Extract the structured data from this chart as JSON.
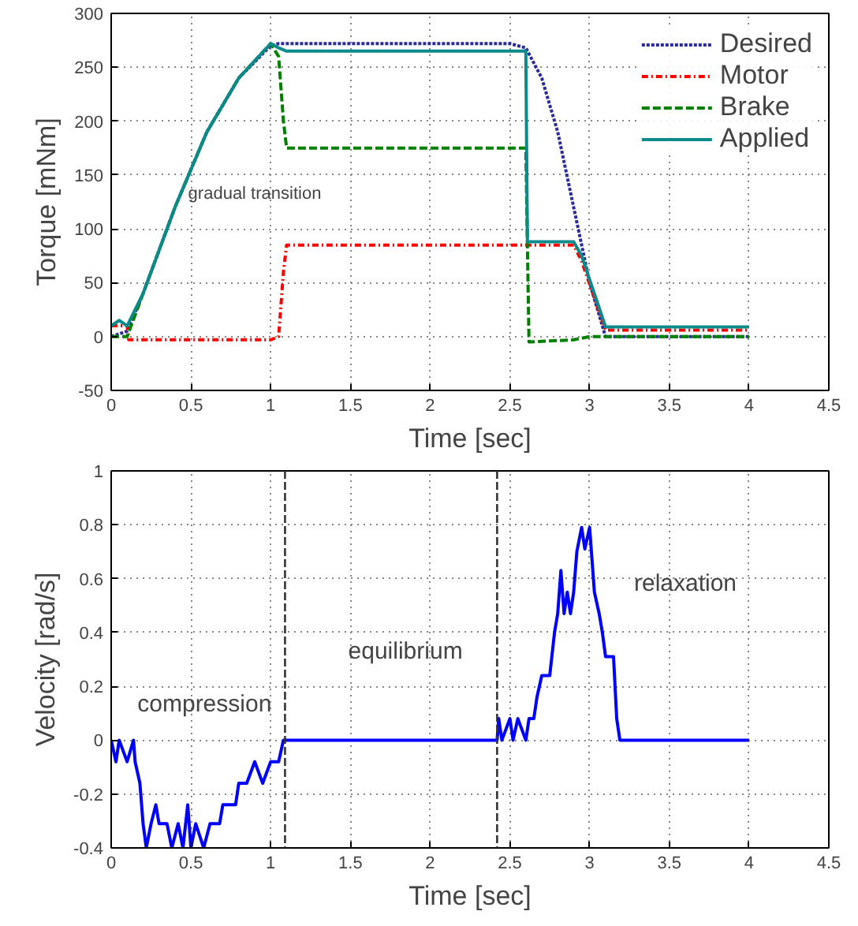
{
  "chart_data": [
    {
      "type": "line",
      "xlabel": "Time [sec]",
      "ylabel": "Torque [mNm]",
      "xlim": [
        0,
        4.5
      ],
      "ylim": [
        -50,
        300
      ],
      "xticks": [
        0,
        0.5,
        1,
        1.5,
        2,
        2.5,
        3,
        3.5,
        4,
        4.5
      ],
      "yticks": [
        -50,
        0,
        50,
        100,
        150,
        200,
        250,
        300
      ],
      "grid": true,
      "legend": "top right",
      "annotations": [
        "gradual transition"
      ],
      "series": [
        {
          "name": "Desired",
          "color": "#2b2b9c",
          "line_style": "dotted",
          "x": [
            0,
            0.1,
            0.2,
            0.4,
            0.6,
            0.8,
            1.0,
            1.05,
            2.5,
            2.6,
            2.7,
            2.8,
            2.9,
            3.0,
            3.1,
            4.0
          ],
          "values": [
            0,
            5,
            40,
            120,
            190,
            240,
            270,
            272,
            272,
            268,
            240,
            190,
            120,
            50,
            0,
            0
          ]
        },
        {
          "name": "Motor",
          "color": "#ff0000",
          "line_style": "dashdot",
          "x": [
            0,
            0.1,
            0.11,
            0.5,
            1.0,
            1.05,
            1.08,
            1.1,
            2.9,
            2.95,
            3.1,
            4.0
          ],
          "values": [
            10,
            10,
            -3,
            -3,
            -3,
            0,
            60,
            85,
            85,
            70,
            6,
            6
          ]
        },
        {
          "name": "Brake",
          "color": "#008000",
          "line_style": "dashed",
          "x": [
            0,
            0.1,
            0.2,
            0.4,
            0.6,
            0.8,
            1.0,
            1.05,
            1.08,
            1.1,
            2.6,
            2.62,
            2.9,
            3.0,
            4.0
          ],
          "values": [
            0,
            0,
            40,
            120,
            190,
            240,
            272,
            260,
            200,
            175,
            175,
            -5,
            -3,
            0,
            0
          ]
        },
        {
          "name": "Applied",
          "color": "#0b8a8a",
          "line_style": "solid",
          "x": [
            0,
            0.05,
            0.1,
            0.2,
            0.4,
            0.6,
            0.8,
            1.0,
            1.05,
            1.1,
            2.6,
            2.61,
            2.9,
            2.95,
            3.1,
            4.0
          ],
          "values": [
            10,
            15,
            10,
            40,
            120,
            190,
            240,
            272,
            268,
            265,
            265,
            88,
            88,
            75,
            9,
            9
          ]
        }
      ]
    },
    {
      "type": "line",
      "xlabel": "Time [sec]",
      "ylabel": "Velocity [rad/s]",
      "xlim": [
        0,
        4.5
      ],
      "ylim": [
        -0.4,
        1
      ],
      "xticks": [
        0,
        0.5,
        1,
        1.5,
        2,
        2.5,
        3,
        3.5,
        4,
        4.5
      ],
      "yticks": [
        -0.4,
        -0.2,
        0,
        0.2,
        0.4,
        0.6,
        0.8,
        1
      ],
      "grid": true,
      "ref_lines": [
        {
          "axis": "x",
          "value": 1.09,
          "color": "#333333",
          "line_style": "dashed"
        },
        {
          "axis": "x",
          "value": 2.42,
          "color": "#333333",
          "line_style": "dashed"
        }
      ],
      "annotations": [
        "compression",
        "equilibrium",
        "relaxation"
      ],
      "series": [
        {
          "color": "#0000ff",
          "line_style": "solid",
          "x": [
            0,
            0.03,
            0.05,
            0.1,
            0.14,
            0.15,
            0.18,
            0.2,
            0.22,
            0.25,
            0.28,
            0.3,
            0.35,
            0.38,
            0.42,
            0.45,
            0.48,
            0.5,
            0.53,
            0.58,
            0.62,
            0.68,
            0.7,
            0.78,
            0.8,
            0.85,
            0.9,
            0.95,
            1.0,
            1.05,
            1.08,
            2.42,
            2.43,
            2.45,
            2.5,
            2.52,
            2.55,
            2.6,
            2.62,
            2.65,
            2.67,
            2.7,
            2.75,
            2.78,
            2.8,
            2.82,
            2.84,
            2.86,
            2.88,
            2.9,
            2.92,
            2.95,
            2.97,
            3.0,
            3.03,
            3.06,
            3.08,
            3.1,
            3.15,
            3.17,
            3.19,
            4.0
          ],
          "values": [
            0,
            -0.08,
            0,
            -0.08,
            0,
            -0.08,
            -0.16,
            -0.31,
            -0.4,
            -0.31,
            -0.24,
            -0.31,
            -0.31,
            -0.4,
            -0.31,
            -0.4,
            -0.24,
            -0.4,
            -0.31,
            -0.4,
            -0.31,
            -0.31,
            -0.24,
            -0.24,
            -0.16,
            -0.16,
            -0.08,
            -0.16,
            -0.08,
            -0.08,
            0,
            0,
            0.08,
            0,
            0.08,
            0,
            0.08,
            0,
            0.08,
            0.08,
            0.16,
            0.24,
            0.24,
            0.4,
            0.47,
            0.63,
            0.47,
            0.55,
            0.47,
            0.55,
            0.7,
            0.79,
            0.71,
            0.79,
            0.55,
            0.47,
            0.4,
            0.31,
            0.31,
            0.08,
            0,
            0
          ]
        }
      ]
    }
  ]
}
